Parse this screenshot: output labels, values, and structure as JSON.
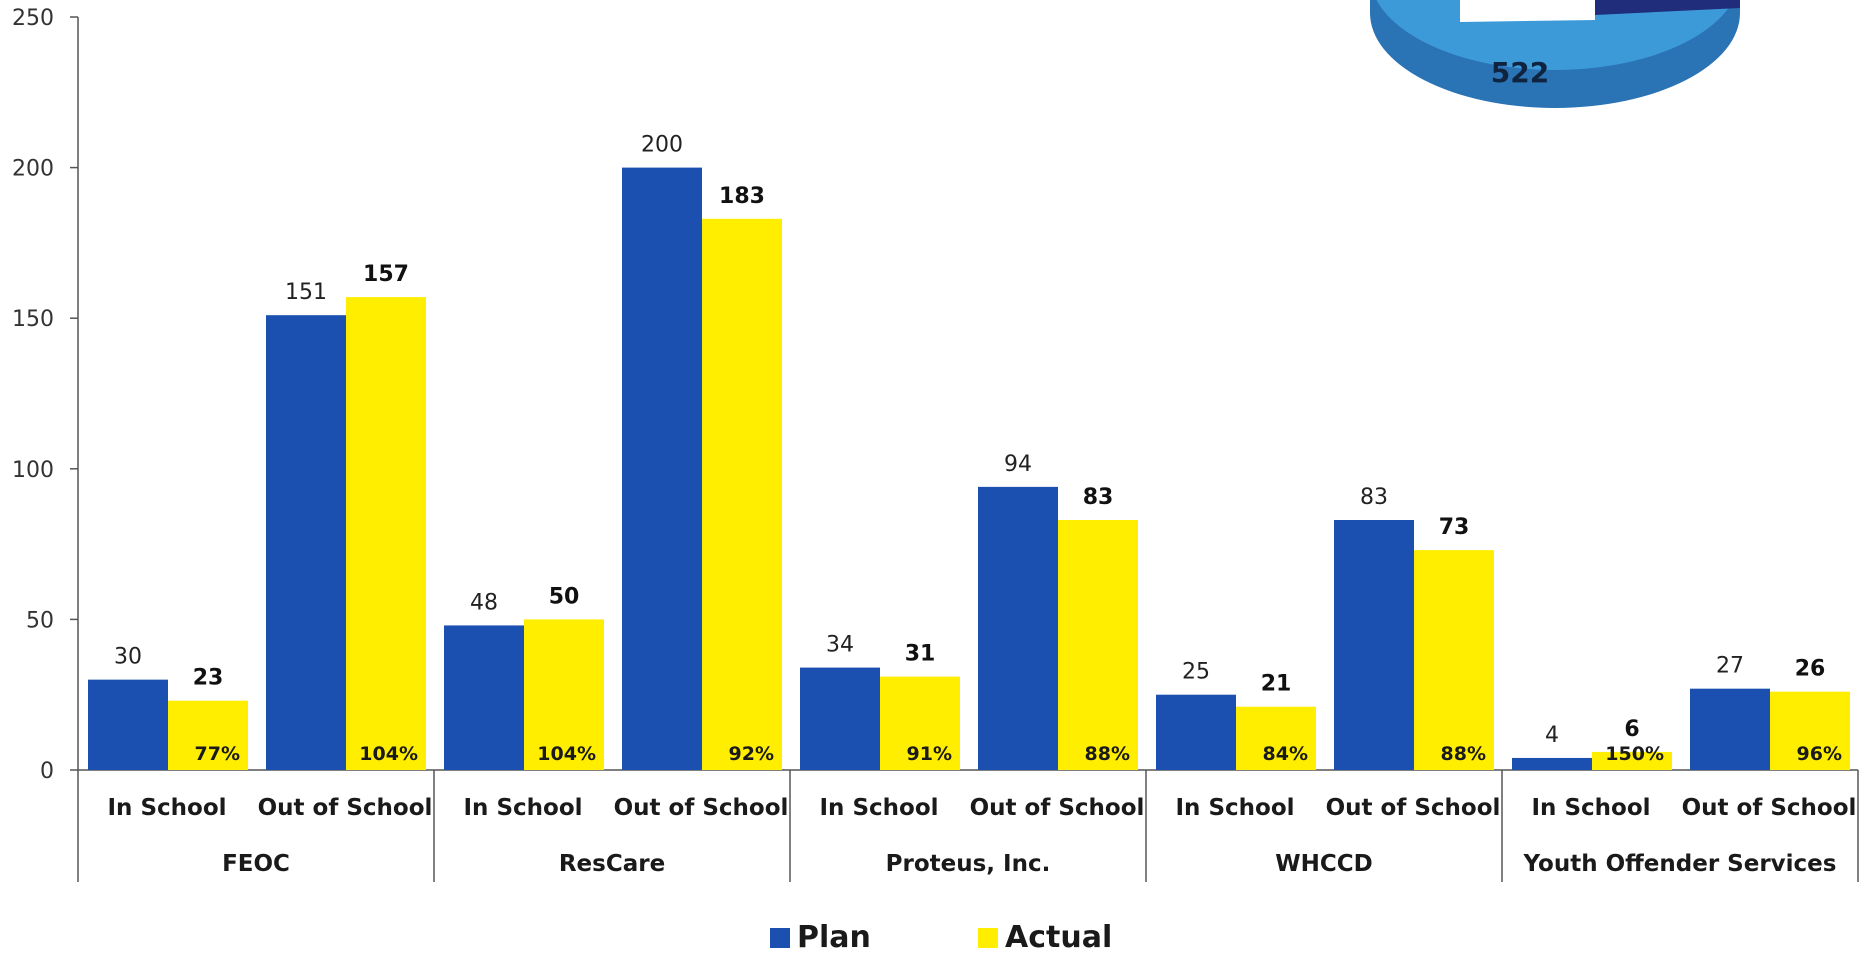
{
  "chart_data": [
    {
      "type": "bar",
      "title": "",
      "xlabel": "",
      "ylabel": "",
      "ylim": [
        0,
        250
      ],
      "yticks": [
        0,
        50,
        100,
        150,
        200,
        250
      ],
      "grid": false,
      "legend_position": "bottom-center",
      "groups": [
        "FEOC",
        "ResCare",
        "Proteus, Inc.",
        "WHCCD",
        "Youth Offender Services"
      ],
      "categories": [
        "In School",
        "Out of School",
        "In School",
        "Out of School",
        "In School",
        "Out of School",
        "In School",
        "Out of School",
        "In School",
        "Out of School"
      ],
      "series": [
        {
          "name": "Plan",
          "color": "#1b4fb0",
          "values": [
            30,
            151,
            48,
            200,
            34,
            94,
            25,
            83,
            4,
            27
          ]
        },
        {
          "name": "Actual",
          "color": "#ffee00",
          "values": [
            23,
            157,
            50,
            183,
            31,
            83,
            21,
            73,
            6,
            26
          ],
          "percent_labels": [
            "77%",
            "104%",
            "104%",
            "92%",
            "91%",
            "88%",
            "84%",
            "88%",
            "150%",
            "96%"
          ]
        }
      ]
    },
    {
      "type": "pie",
      "partially_visible": true,
      "slices": [
        {
          "label": "522",
          "value": 522,
          "color": "#3d9ad9"
        },
        {
          "label": "",
          "value": null,
          "color": "#1f2d7a"
        }
      ]
    }
  ]
}
